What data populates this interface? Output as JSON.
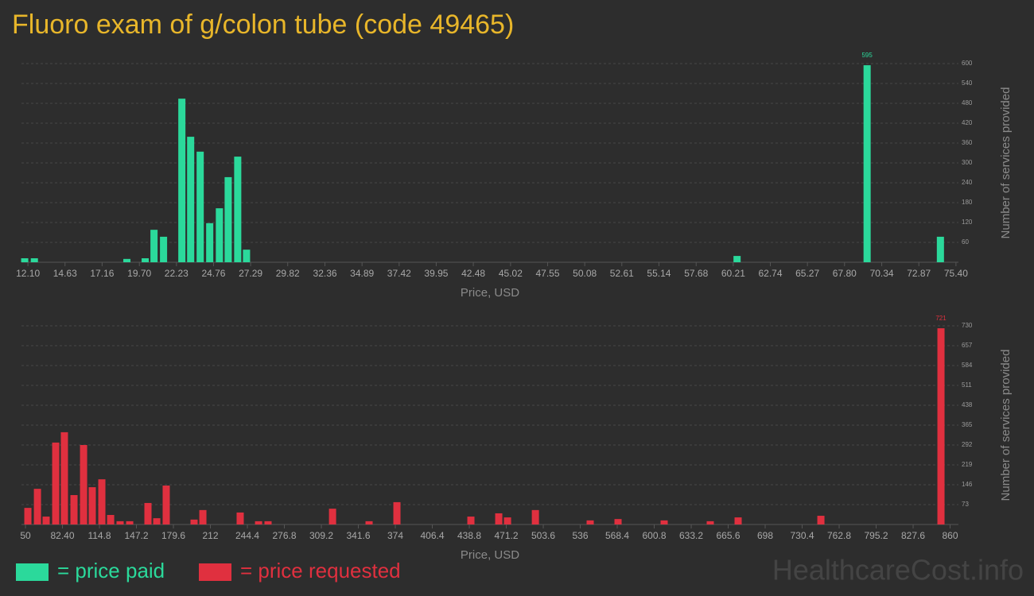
{
  "title": "Fluoro exam of g/colon tube (code 49465)",
  "watermark": "HealthcareCost.info",
  "chart_data": [
    {
      "type": "bar",
      "xlabel": "Price, USD",
      "ylabel": "Number of services provided",
      "grid": true,
      "xlim": [
        11.66,
        75.57
      ],
      "ylim": [
        0,
        600
      ],
      "xticks": [
        {
          "value": 12.1,
          "label": "12.10"
        },
        14.63,
        17.16,
        {
          "value": 19.7,
          "label": "19.70"
        },
        22.23,
        24.76,
        27.29,
        29.82,
        32.36,
        34.89,
        37.42,
        39.95,
        42.48,
        45.02,
        47.55,
        50.08,
        52.61,
        55.14,
        57.68,
        60.21,
        62.74,
        65.27,
        {
          "value": 67.8,
          "label": "67.80"
        },
        70.34,
        72.87,
        {
          "value": 75.4,
          "label": "75.40"
        }
      ],
      "yticks": [
        60,
        120,
        180,
        240,
        300,
        360,
        420,
        480,
        540,
        600
      ],
      "x": [
        11.88,
        12.54,
        18.85,
        20.1,
        20.7,
        21.35,
        22.6,
        23.2,
        23.85,
        24.5,
        25.16,
        25.76,
        26.41,
        27.01,
        60.47,
        69.34,
        74.34
      ],
      "series": [
        {
          "name": "= price paid",
          "color": "#2bd99b",
          "values": [
            12,
            12,
            10,
            12,
            98,
            77,
            494,
            379,
            334,
            118,
            163,
            257,
            319,
            38,
            19,
            595,
            77
          ]
        }
      ]
    },
    {
      "type": "bar",
      "xlabel": "Price, USD",
      "ylabel": "Number of services provided",
      "grid": true,
      "xlim": [
        46.5,
        867.3
      ],
      "ylim": [
        0,
        730
      ],
      "xticks": [
        50,
        {
          "value": 82.4,
          "label": "82.40"
        },
        114.8,
        147.2,
        179.6,
        212,
        244.4,
        276.8,
        309.2,
        341.6,
        374,
        406.4,
        438.8,
        471.2,
        503.6,
        536,
        568.4,
        600.8,
        633.2,
        665.6,
        698,
        730.4,
        762.8,
        795.2,
        827.6,
        860
      ],
      "yticks": [
        73,
        146,
        219,
        292,
        365,
        438,
        511,
        584,
        657,
        730
      ],
      "x": [
        52.1,
        60.5,
        68.1,
        76.5,
        84.1,
        92.5,
        100.9,
        108.5,
        116.9,
        124.6,
        132.9,
        141.3,
        157.3,
        165.0,
        173.3,
        197.7,
        205.4,
        238.1,
        254.2,
        262.5,
        319.0,
        351.0,
        375.4,
        440.2,
        464.6,
        472.3,
        496.7,
        544.7,
        569.1,
        609.5,
        649.9,
        674.3,
        746.8,
        852.0
      ],
      "series": [
        {
          "name": "= price requested",
          "color": "#e0303f",
          "values": [
            61,
            131,
            29,
            301,
            339,
            108,
            292,
            137,
            166,
            35,
            12,
            12,
            79,
            23,
            143,
            18,
            53,
            44,
            12,
            12,
            58,
            12,
            82,
            29,
            41,
            26,
            53,
            15,
            20,
            15,
            12,
            26,
            32,
            721
          ]
        }
      ]
    }
  ]
}
